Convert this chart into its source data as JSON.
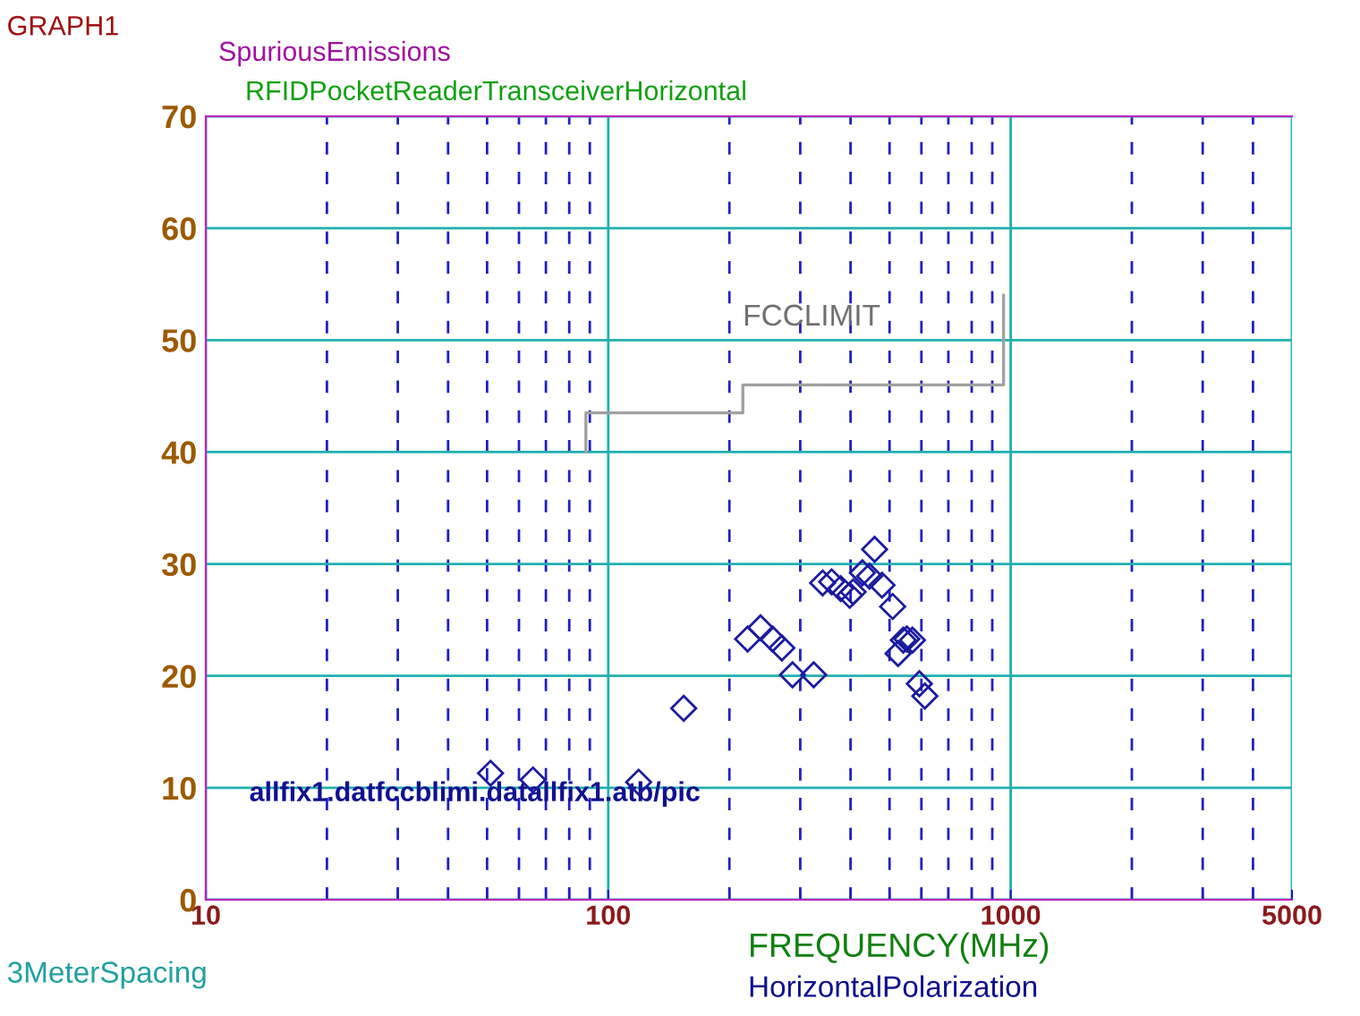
{
  "chart_data": {
    "type": "scatter",
    "title": "SpuriousEmissions",
    "subtitle": "RFIDPocketReaderTransceiverHorizontal",
    "xlabel": "FREQUENCY(MHz)",
    "annotations": [
      "GRAPH1",
      "allfix1.datfccblimi.datallfix1.atb/pic",
      "3MeterSpacing",
      "HorizontalPolarization"
    ],
    "log": "x",
    "xlim": [
      10,
      5000
    ],
    "ylim": [
      0,
      70
    ],
    "xticks": [
      10,
      {
        "value": 20,
        "label": null
      },
      {
        "value": 30,
        "label": null
      },
      {
        "value": 40,
        "label": null
      },
      {
        "value": 50,
        "label": null
      },
      {
        "value": 60,
        "label": null
      },
      {
        "value": 70,
        "label": null
      },
      {
        "value": 80,
        "label": null
      },
      {
        "value": 90,
        "label": null
      },
      100,
      {
        "value": 200,
        "label": null
      },
      {
        "value": 300,
        "label": null
      },
      {
        "value": 400,
        "label": null
      },
      {
        "value": 500,
        "label": null
      },
      {
        "value": 600,
        "label": null
      },
      {
        "value": 700,
        "label": null
      },
      {
        "value": 800,
        "label": null
      },
      {
        "value": 900,
        "label": null
      },
      1000,
      {
        "value": 2000,
        "label": null
      },
      {
        "value": 3000,
        "label": null
      },
      {
        "value": 4000,
        "label": null
      },
      5000
    ],
    "yticks": [
      0,
      10,
      20,
      30,
      40,
      50,
      60,
      70
    ],
    "grid": true,
    "marker": "diamond",
    "series": [
      {
        "name": "FCCLIMIT",
        "type": "step",
        "color": "#a0a0a0",
        "marker": "none",
        "x": [
          88,
          88,
          216,
          960
        ],
        "values": [
          40,
          43.5,
          46,
          54
        ]
      },
      {
        "color": "#1a1aa0",
        "x": [
          459,
          428,
          446,
          479,
          509,
          341,
          359,
          378,
          398,
          406,
          222,
          239,
          256,
          270,
          287,
          324,
          525,
          541,
          552,
          570,
          593,
          612,
          154,
          51,
          65,
          119
        ],
        "values": [
          31.3,
          29.2,
          28.9,
          28.1,
          26.2,
          28.3,
          28.4,
          27.8,
          27.2,
          27.5,
          23.3,
          24.3,
          23.3,
          22.5,
          20.1,
          20.1,
          22.0,
          23.2,
          23.3,
          23.2,
          19.3,
          18.2,
          17.1,
          11.3,
          10.7,
          10.5
        ]
      }
    ]
  }
}
